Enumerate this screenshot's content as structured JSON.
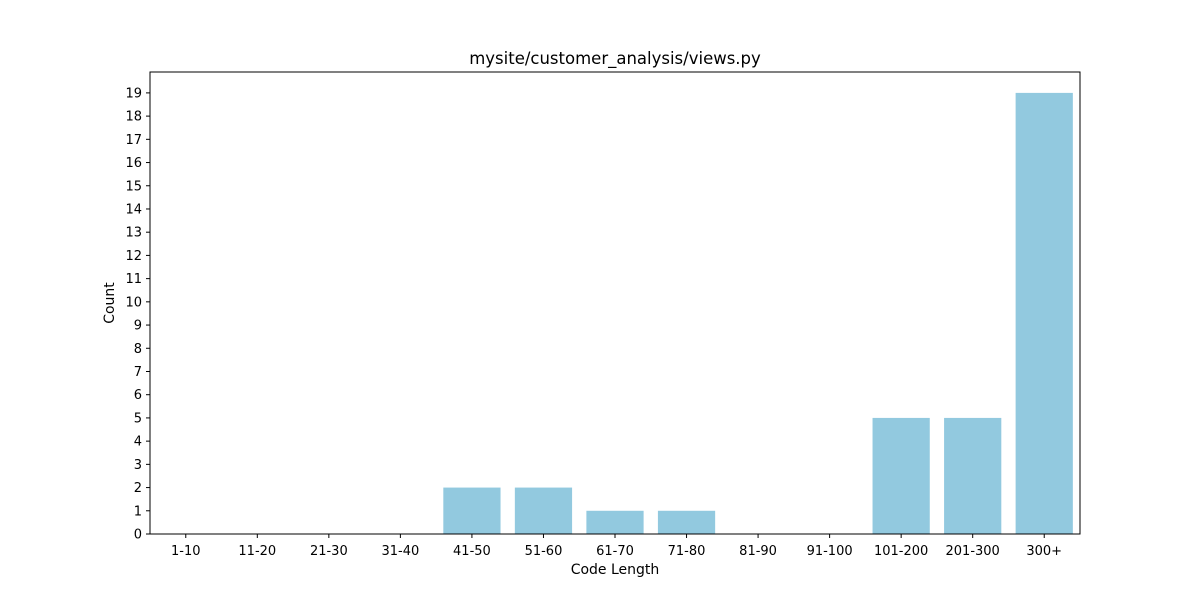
{
  "chart_data": {
    "type": "bar",
    "title": "mysite/customer_analysis/views.py",
    "xlabel": "Code Length",
    "ylabel": "Count",
    "categories": [
      "1-10",
      "11-20",
      "21-30",
      "31-40",
      "41-50",
      "51-60",
      "61-70",
      "71-80",
      "81-90",
      "91-100",
      "101-200",
      "201-300",
      "300+"
    ],
    "values": [
      0,
      0,
      0,
      0,
      2,
      2,
      1,
      1,
      0,
      0,
      5,
      5,
      19
    ],
    "ylim": [
      0,
      19.9
    ],
    "yticks": [
      0,
      1,
      2,
      3,
      4,
      5,
      6,
      7,
      8,
      9,
      10,
      11,
      12,
      13,
      14,
      15,
      16,
      17,
      18,
      19
    ],
    "grid": false,
    "bar_color": "#92c9df"
  }
}
